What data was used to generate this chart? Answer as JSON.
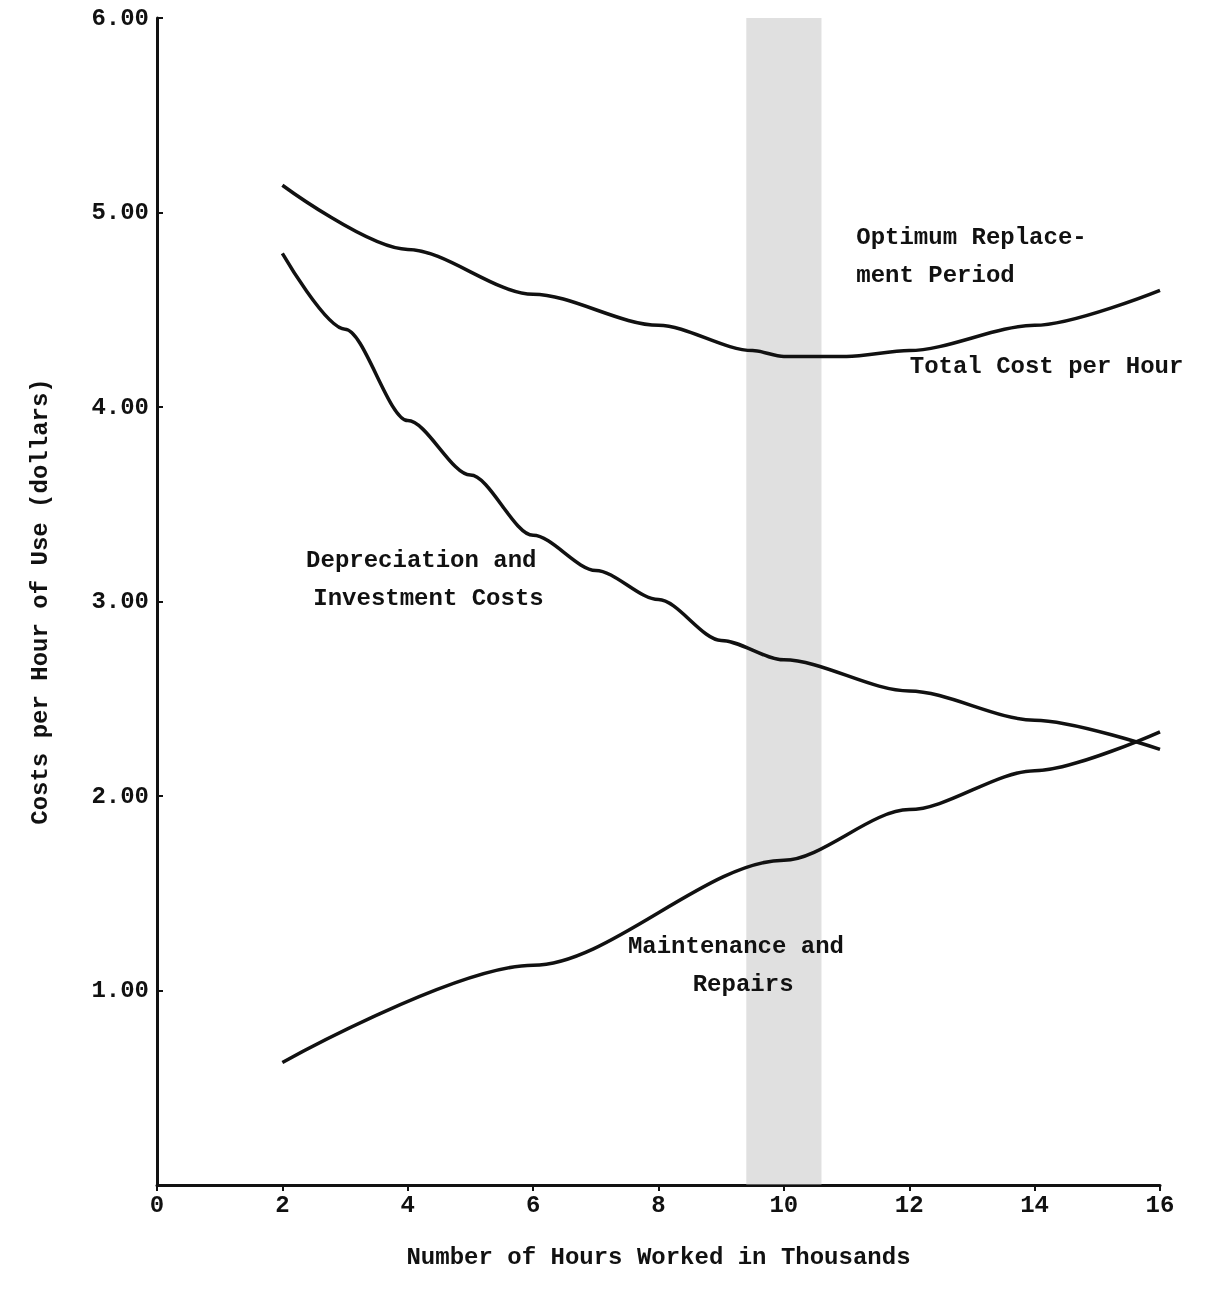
{
  "chart_data": {
    "type": "line",
    "xlabel": "Number of Hours Worked in Thousands",
    "ylabel": "Costs per Hour of Use (dollars)",
    "xlim": [
      0,
      16
    ],
    "xticks": [
      0,
      2,
      4,
      6,
      8,
      10,
      12,
      14,
      16
    ],
    "ylim": [
      0,
      6
    ],
    "yticks": [
      {
        "value": 0,
        "label": null
      },
      {
        "value": 1,
        "label": "1.00"
      },
      {
        "value": 2,
        "label": "2.00"
      },
      {
        "value": 3,
        "label": "3.00"
      },
      {
        "value": 4,
        "label": "4.00"
      },
      {
        "value": 5,
        "label": "5.00"
      },
      {
        "value": 6,
        "label": "6.00"
      }
    ],
    "grid": false,
    "marker": "none",
    "line_style": "solid",
    "series": [
      {
        "name": "Total Cost per Hour",
        "color": "#111111",
        "x": [
          2,
          4,
          6,
          8,
          9.5,
          10,
          11,
          12,
          14,
          16
        ],
        "values": [
          5.14,
          4.81,
          4.58,
          4.42,
          4.29,
          4.26,
          4.26,
          4.29,
          4.42,
          4.6
        ]
      },
      {
        "name": "Depreciation and Investment Costs",
        "color": "#111111",
        "x": [
          2,
          3,
          4,
          5,
          6,
          7,
          8,
          9,
          10,
          12,
          14,
          16
        ],
        "values": [
          4.79,
          4.4,
          3.93,
          3.65,
          3.34,
          3.16,
          3.01,
          2.8,
          2.7,
          2.54,
          2.39,
          2.24
        ]
      },
      {
        "name": "Maintenance and Repairs",
        "color": "#111111",
        "x": [
          2,
          6,
          10,
          12,
          14,
          16
        ],
        "values": [
          0.63,
          1.13,
          1.67,
          1.93,
          2.13,
          2.33
        ]
      }
    ],
    "bands": [
      {
        "axis": "x",
        "from": 9.4,
        "to": 10.6,
        "label": "Optimum Replace-\nment Period",
        "color": "#bbbbbb"
      }
    ]
  }
}
